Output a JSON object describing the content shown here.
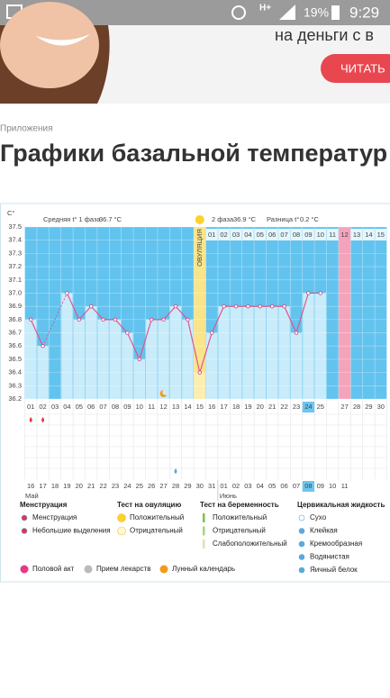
{
  "status_bar": {
    "network": "H+",
    "battery": "19%",
    "time": "9:29"
  },
  "ad": {
    "text": "на деньги с в",
    "button": "ЧИТАТЬ"
  },
  "breadcrumb": "Приложения",
  "title": "Графики базальной температур",
  "chart": {
    "y_unit": "C°",
    "ylim": [
      36.2,
      37.5
    ],
    "yticks": [
      37.5,
      37.4,
      37.3,
      37.2,
      37.1,
      {
        "value": 37,
        "label": "37.0"
      },
      36.9,
      36.8,
      36.7,
      36.6,
      36.5,
      36.4,
      36.3,
      36.2
    ],
    "phase1_label": "Средняя t° 1 фаза",
    "phase1_value": "36.7 °C",
    "phase2_label": "2 фаза",
    "phase2_value": "36.9 °C",
    "diff_label": "Разница t°",
    "diff_value": "0.2 °C",
    "ovulation_label": "ОВУЛЯЦИЯ",
    "cycle_days": [
      "01",
      "02",
      "03",
      "04",
      "05",
      "06",
      "07",
      "08",
      "09",
      "10",
      "11",
      "12",
      "13",
      "14",
      "15",
      "16",
      "17",
      "18",
      "19",
      "20",
      "21",
      "22",
      "23",
      "24",
      "25",
      null,
      "27",
      "28",
      "29",
      "30"
    ],
    "temperatures": [
      36.8,
      36.6,
      null,
      37,
      36.8,
      36.9,
      36.8,
      36.8,
      36.7,
      36.5,
      36.8,
      36.8,
      36.9,
      36.8,
      36.4,
      36.7,
      36.9,
      36.9,
      36.9,
      36.9,
      36.9,
      36.9,
      36.7,
      37,
      37,
      null,
      null,
      null,
      null,
      null
    ],
    "next_cycle_days": [
      "01",
      "02",
      "03",
      "04",
      "05",
      "06",
      "07",
      "08",
      "09",
      "10",
      "11",
      "12",
      "13",
      "14",
      "15"
    ],
    "dates": [
      "16",
      "17",
      "18",
      "19",
      "20",
      "21",
      "22",
      "23",
      "24",
      "25",
      "26",
      "27",
      "28",
      "29",
      "30",
      "31",
      "01",
      "02",
      "03",
      "04",
      "05",
      "06",
      "07",
      "08",
      "09",
      "10",
      "11",
      null,
      null,
      null
    ],
    "months": [
      "Май",
      "Июнь"
    ]
  },
  "legend": {
    "groups": [
      {
        "title": "Менструация",
        "items": [
          "Менструация",
          "Небольшие выделения"
        ]
      },
      {
        "title": "Тест на овуляцию",
        "items": [
          "Положительный",
          "Отрицательный"
        ]
      },
      {
        "title": "Тест на беременность",
        "items": [
          "Положительный",
          "Отрицательный",
          "Слабоположительный"
        ]
      },
      {
        "title": "Цервикальная жидкость",
        "items": [
          "Сухо",
          "Клейкая",
          "Кремообразная",
          "Водянистая",
          "Яичный белок"
        ]
      }
    ],
    "extras": [
      "Половой акт",
      "Прием лекарств",
      "Лунный календарь"
    ]
  }
}
